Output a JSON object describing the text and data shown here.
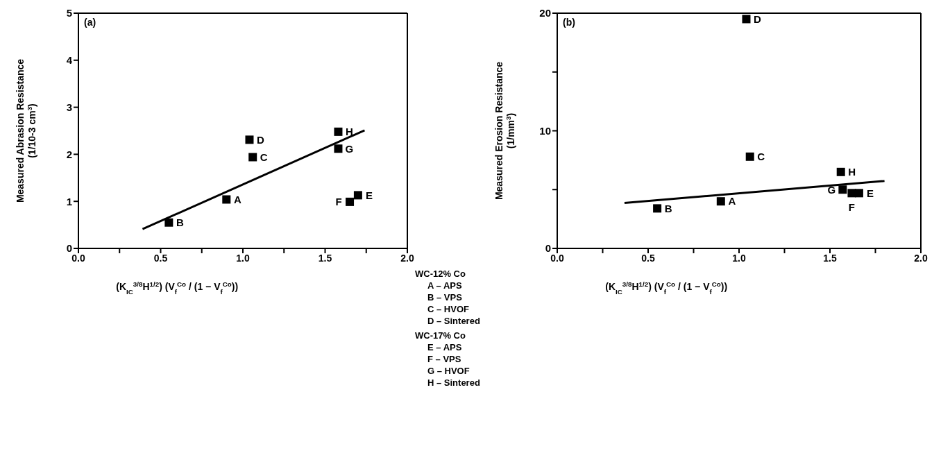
{
  "chart_data": [
    {
      "type": "scatter",
      "title": "(a)",
      "xlabel": "(K$_{IC}$$^{3/8}$H$^{1/2}$) (V$_{f}$$^{Co}$ / (1 − V$_{f}$$^{Co}$))",
      "ylabel": "Measured Abrasion Resistance\n(1/10-3 cm$^{3}$)",
      "xlim": [
        0,
        2
      ],
      "xticks": [
        {
          "value": 0,
          "label": "0.0"
        },
        {
          "value": 0.25,
          "label": null
        },
        {
          "value": 0.5,
          "label": "0.5"
        },
        {
          "value": 0.75,
          "label": null
        },
        {
          "value": 1,
          "label": "1.0"
        },
        {
          "value": 1.25,
          "label": null
        },
        {
          "value": 1.5,
          "label": "1.5"
        },
        {
          "value": 1.75,
          "label": null
        },
        {
          "value": 2,
          "label": "2.0"
        }
      ],
      "ylim": [
        0,
        5
      ],
      "yticks": [
        0,
        1,
        2,
        3,
        4,
        5
      ],
      "marker": "square",
      "series": [
        {
          "color": "#000000",
          "x": [
            0.9,
            0.55,
            1.06,
            1.04,
            1.7,
            1.65,
            1.58,
            1.58
          ],
          "values": [
            1.04,
            0.55,
            1.94,
            2.31,
            1.13,
            0.99,
            2.12,
            2.48
          ]
        },
        {
          "type": "line",
          "color": "#000000",
          "line_style": "solid",
          "marker": "none",
          "x": [
            0.39,
            1.74
          ],
          "values": [
            0.41,
            2.51
          ]
        }
      ],
      "annotations": [
        {
          "text": "A",
          "x": 0.9,
          "y": 1.04
        },
        {
          "text": "B",
          "x": 0.55,
          "y": 0.55
        },
        {
          "text": "C",
          "x": 1.06,
          "y": 1.94
        },
        {
          "text": "D",
          "x": 1.04,
          "y": 2.31
        },
        {
          "text": "E",
          "x": 1.7,
          "y": 1.13
        },
        {
          "text": "F",
          "x": 1.65,
          "y": 0.99
        },
        {
          "text": "G",
          "x": 1.58,
          "y": 2.12
        },
        {
          "text": "H",
          "x": 1.58,
          "y": 2.48
        },
        "WC-12% Co\nA – APS\nB – VPS\nC – HVOF\nD – Sintered",
        "WC-17% Co\nE – APS\nF – VPS\nG – HVOF\nH – Sintered"
      ]
    },
    {
      "type": "scatter",
      "title": "(b)",
      "xlabel": "(K$_{IC}$$^{3/8}$H$^{1/2}$) (V$_{f}$$^{Co}$ / (1 − V$_{f}$$^{Co}$))",
      "ylabel": "Measured Erosion Resistance\n(1/mm$^{3}$)",
      "xlim": [
        0,
        2
      ],
      "xticks": [
        {
          "value": 0,
          "label": "0.0"
        },
        {
          "value": 0.25,
          "label": null
        },
        {
          "value": 0.5,
          "label": "0.5"
        },
        {
          "value": 0.75,
          "label": null
        },
        {
          "value": 1,
          "label": "1.0"
        },
        {
          "value": 1.25,
          "label": null
        },
        {
          "value": 1.5,
          "label": "1.5"
        },
        {
          "value": 1.75,
          "label": null
        },
        {
          "value": 2,
          "label": "2.0"
        }
      ],
      "ylim": [
        0,
        20
      ],
      "yticks": [
        0,
        {
          "value": 5,
          "label": null
        },
        10,
        {
          "value": 15,
          "label": null
        },
        20
      ],
      "marker": "square",
      "series": [
        {
          "color": "#000000",
          "x": [
            0.9,
            0.55,
            1.06,
            1.04,
            1.66,
            1.62,
            1.57,
            1.56
          ],
          "values": [
            4.0,
            3.4,
            7.8,
            19.5,
            4.7,
            4.7,
            5.0,
            6.5
          ]
        },
        {
          "type": "line",
          "color": "#000000",
          "line_style": "solid",
          "marker": "none",
          "x": [
            0.37,
            1.8
          ],
          "values": [
            3.86,
            5.73
          ]
        }
      ],
      "annotations": [
        {
          "text": "A",
          "x": 0.9,
          "y": 4.0
        },
        {
          "text": "B",
          "x": 0.55,
          "y": 3.4
        },
        {
          "text": "C",
          "x": 1.06,
          "y": 7.8
        },
        {
          "text": "D",
          "x": 1.04,
          "y": 19.5
        },
        {
          "text": "E",
          "x": 1.66,
          "y": 4.7
        },
        {
          "text": "F",
          "x": 1.62,
          "y": 4.7
        },
        {
          "text": "G",
          "x": 1.57,
          "y": 5.0
        },
        {
          "text": "H",
          "x": 1.56,
          "y": 6.5
        }
      ]
    }
  ]
}
